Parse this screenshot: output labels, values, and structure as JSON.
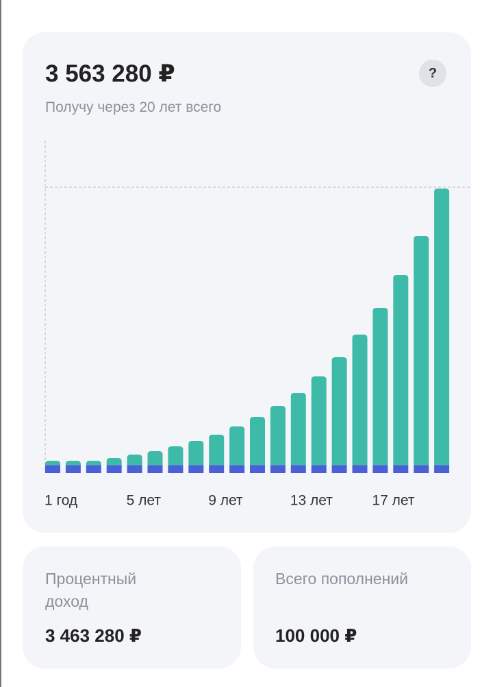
{
  "header": {
    "total": "3 563 280 ₽",
    "subtitle": "Получу через 20 лет всего",
    "help": "?"
  },
  "chart_data": {
    "type": "stacked-bar",
    "categories": [
      "1 год",
      null,
      null,
      null,
      "5 лет",
      null,
      null,
      null,
      "9 лет",
      null,
      null,
      null,
      "13 лет",
      null,
      null,
      null,
      "17 лет",
      null,
      null,
      null
    ],
    "series": [
      {
        "color": "#4b5fd6",
        "values": [
          100000,
          100000,
          100000,
          100000,
          100000,
          100000,
          100000,
          100000,
          100000,
          100000,
          100000,
          100000,
          100000,
          100000,
          100000,
          100000,
          100000,
          100000,
          100000,
          100000
        ]
      },
      {
        "color": "#3dbaa8",
        "values": [
          55000,
          55000,
          55000,
          89000,
          132000,
          175000,
          235000,
          304000,
          381000,
          484000,
          604000,
          741000,
          905000,
          1111000,
          1351000,
          1634000,
          1969000,
          2381000,
          2871000,
          3463280
        ]
      }
    ]
  },
  "cards": [
    {
      "label": "Процентный доход",
      "value": "3 463 280 ₽"
    },
    {
      "label": "Всего пополнений",
      "value": "100 000 ₽"
    }
  ]
}
